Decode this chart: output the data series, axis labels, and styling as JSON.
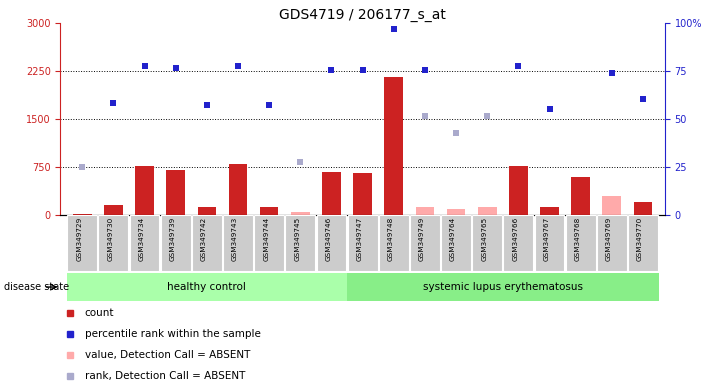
{
  "title": "GDS4719 / 206177_s_at",
  "samples": [
    "GSM349729",
    "GSM349730",
    "GSM349734",
    "GSM349739",
    "GSM349742",
    "GSM349743",
    "GSM349744",
    "GSM349745",
    "GSM349746",
    "GSM349747",
    "GSM349748",
    "GSM349749",
    "GSM349764",
    "GSM349765",
    "GSM349766",
    "GSM349767",
    "GSM349768",
    "GSM349769",
    "GSM349770"
  ],
  "healthy_count": 9,
  "count_values": [
    10,
    150,
    760,
    700,
    120,
    790,
    120,
    10,
    680,
    650,
    2150,
    10,
    10,
    10,
    770,
    130,
    590,
    10,
    200
  ],
  "absent_value_bars": [
    null,
    null,
    null,
    null,
    null,
    null,
    null,
    40,
    null,
    null,
    null,
    130,
    90,
    130,
    null,
    null,
    null,
    290,
    null
  ],
  "percentile_rank": [
    null,
    1750,
    2330,
    2290,
    1720,
    2330,
    1720,
    null,
    2260,
    2270,
    2900,
    2260,
    null,
    null,
    2330,
    1650,
    null,
    2220,
    1820
  ],
  "absent_rank": [
    750,
    null,
    null,
    null,
    null,
    null,
    null,
    830,
    null,
    null,
    null,
    1540,
    1280,
    1550,
    null,
    null,
    null,
    null,
    null
  ],
  "left_ylim": [
    0,
    3000
  ],
  "right_ylim": [
    0,
    100
  ],
  "left_yticks": [
    0,
    750,
    1500,
    2250,
    3000
  ],
  "right_yticks": [
    0,
    25,
    50,
    75,
    100
  ],
  "right_yticklabels": [
    "0",
    "25",
    "50",
    "75",
    "100%"
  ],
  "healthy_label": "healthy control",
  "sle_label": "systemic lupus erythematosus",
  "disease_state_label": "disease state",
  "legend_items": [
    "count",
    "percentile rank within the sample",
    "value, Detection Call = ABSENT",
    "rank, Detection Call = ABSENT"
  ],
  "bar_color": "#cc2222",
  "absent_bar_color": "#ffaaaa",
  "dot_color": "#2222cc",
  "absent_dot_color": "#aaaacc",
  "healthy_bg": "#aaffaa",
  "sle_bg": "#88ee88",
  "tick_label_bg": "#cccccc",
  "title_fontsize": 10,
  "tick_fontsize": 7,
  "legend_fontsize": 7.5
}
